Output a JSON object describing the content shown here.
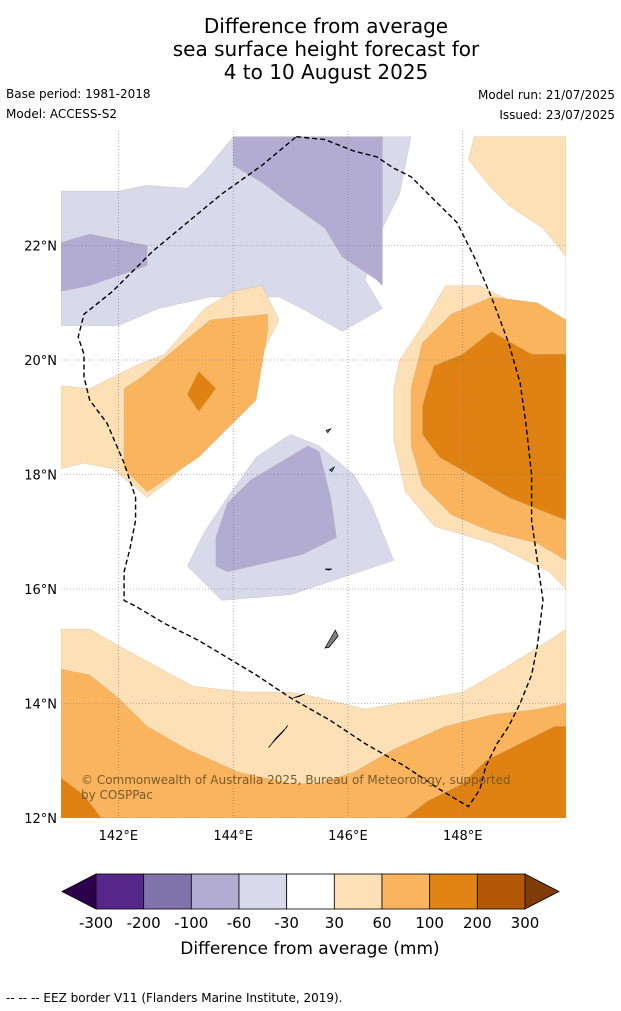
{
  "title": {
    "line1": "Difference from average",
    "line2": "sea surface height forecast for",
    "line3": "4 to 10 August 2025"
  },
  "meta": {
    "base_period": "Base period: 1981-2018",
    "model": "Model: ACCESS-S2",
    "model_run": "Model run: 21/07/2025",
    "issued": "Issued: 23/07/2025"
  },
  "map": {
    "lon_range": [
      141,
      149.8
    ],
    "lat_range": [
      12,
      24
    ],
    "lon_ticks": [
      {
        "value": 142,
        "label": "142°E"
      },
      {
        "value": 144,
        "label": "144°E"
      },
      {
        "value": 146,
        "label": "146°E"
      },
      {
        "value": 148,
        "label": "148°E"
      }
    ],
    "lat_ticks": [
      {
        "value": 12,
        "label": "12°N"
      },
      {
        "value": 14,
        "label": "14°N"
      },
      {
        "value": 16,
        "label": "16°N"
      },
      {
        "value": 18,
        "label": "18°N"
      },
      {
        "value": 20,
        "label": "20°N"
      },
      {
        "value": 22,
        "label": "22°N"
      }
    ],
    "grid": true,
    "copyright": "© Commonwealth of Australia 2025, Bureau of Meteorology, supported by COSPPac",
    "contour_levels": [
      {
        "level": "-60 to -30",
        "color": "#d8d9ea",
        "polygons": [
          [
            [
              141,
              22.95
            ],
            [
              142,
              22.95
            ],
            [
              142.5,
              23.05
            ],
            [
              143.2,
              23
            ],
            [
              143.5,
              23.3
            ],
            [
              144,
              23.9
            ],
            [
              147.1,
              23.9
            ],
            [
              146.9,
              22.9
            ],
            [
              146.5,
              22.1
            ],
            [
              146.3,
              21.4
            ],
            [
              146.6,
              20.9
            ],
            [
              145.9,
              20.5
            ],
            [
              145.2,
              20.9
            ],
            [
              144.8,
              21.1
            ],
            [
              143.6,
              21.1
            ],
            [
              142.7,
              20.9
            ],
            [
              142,
              20.6
            ],
            [
              141,
              20.6
            ]
          ],
          [
            [
              143.2,
              16.4
            ],
            [
              143.8,
              15.8
            ],
            [
              145,
              15.9
            ],
            [
              146.2,
              16.3
            ],
            [
              146.8,
              16.5
            ],
            [
              146.4,
              17.5
            ],
            [
              146.1,
              18
            ],
            [
              145.5,
              18.5
            ],
            [
              145,
              18.7
            ],
            [
              144.4,
              18.3
            ],
            [
              143.9,
              17.6
            ],
            [
              143.5,
              17
            ]
          ]
        ]
      },
      {
        "level": "-100 to -60",
        "color": "#b2acd3",
        "polygons": [
          [
            [
              144,
              23.9
            ],
            [
              146.6,
              23.9
            ],
            [
              146.6,
              21.3
            ],
            [
              146.5,
              21.4
            ],
            [
              145.9,
              21.8
            ],
            [
              145.6,
              22.3
            ],
            [
              144.9,
              22.8
            ],
            [
              144.5,
              23.1
            ],
            [
              144,
              23.4
            ]
          ],
          [
            [
              141,
              22.05
            ],
            [
              141.5,
              22.2
            ],
            [
              142.5,
              22
            ],
            [
              142.5,
              21.65
            ],
            [
              141.5,
              21.3
            ],
            [
              141,
              21.2
            ]
          ],
          [
            [
              143.7,
              16.4
            ],
            [
              143.9,
              16.3
            ],
            [
              145.2,
              16.6
            ],
            [
              145.8,
              16.9
            ],
            [
              145.7,
              17.6
            ],
            [
              145.5,
              18.4
            ],
            [
              145.3,
              18.5
            ],
            [
              144.8,
              18.2
            ],
            [
              144.3,
              17.9
            ],
            [
              143.9,
              17.5
            ],
            [
              143.7,
              16.9
            ]
          ]
        ]
      },
      {
        "level": "30 to 60",
        "color": "#fde0b6",
        "polygons": [
          [
            [
              141,
              19.55
            ],
            [
              141.5,
              19.5
            ],
            [
              142.3,
              19.9
            ],
            [
              142.8,
              20.1
            ],
            [
              143.5,
              20.9
            ],
            [
              144,
              21.2
            ],
            [
              144.5,
              21.3
            ],
            [
              144.8,
              20.7
            ],
            [
              144.4,
              19.9
            ],
            [
              144,
              19.2
            ],
            [
              143.5,
              18.5
            ],
            [
              142.9,
              17.9
            ],
            [
              142.5,
              17.6
            ],
            [
              141.9,
              18.1
            ],
            [
              141.4,
              18.2
            ],
            [
              141,
              18.1
            ]
          ],
          [
            [
              148.2,
              23.9
            ],
            [
              149.8,
              23.9
            ],
            [
              149.8,
              20.6
            ],
            [
              149.5,
              20.7
            ],
            [
              148.3,
              21.3
            ],
            [
              147.7,
              21.3
            ],
            [
              147.3,
              20.6
            ],
            [
              146.9,
              20
            ],
            [
              146.8,
              19.5
            ],
            [
              146.8,
              18.6
            ],
            [
              147,
              17.7
            ],
            [
              147.5,
              17.1
            ],
            [
              148.5,
              16.8
            ],
            [
              149.5,
              16.3
            ],
            [
              149.8,
              16
            ],
            [
              149.8,
              15.3
            ],
            [
              149.5,
              15.1
            ],
            [
              148.7,
              14.6
            ],
            [
              148,
              14.2
            ],
            [
              146.3,
              13.9
            ],
            [
              145.5,
              14.1
            ],
            [
              145,
              14.2
            ],
            [
              144.2,
              14.2
            ],
            [
              143.3,
              14.3
            ],
            [
              142.2,
              14.9
            ],
            [
              141.5,
              15.3
            ],
            [
              141,
              15.3
            ],
            [
              141,
              12
            ],
            [
              149.8,
              12
            ],
            [
              149.8,
              21.8
            ],
            [
              149.4,
              22.3
            ],
            [
              148.8,
              22.7
            ],
            [
              148.5,
              23
            ],
            [
              148.1,
              23.5
            ]
          ]
        ]
      },
      {
        "level": "60 to 100",
        "color": "#f9b45d",
        "polygons": [
          [
            [
              142.1,
              19.5
            ],
            [
              142.4,
              19.7
            ],
            [
              143,
              20.2
            ],
            [
              143.6,
              20.7
            ],
            [
              144.6,
              20.8
            ],
            [
              144.6,
              20.5
            ],
            [
              144.4,
              19.3
            ],
            [
              144,
              18.9
            ],
            [
              143.4,
              18.3
            ],
            [
              142.5,
              17.7
            ],
            [
              142.1,
              18.1
            ]
          ],
          [
            [
              149.8,
              20.7
            ],
            [
              149.3,
              21
            ],
            [
              148.5,
              21.1
            ],
            [
              147.8,
              20.8
            ],
            [
              147.3,
              20.3
            ],
            [
              147.1,
              19.5
            ],
            [
              147.1,
              18.5
            ],
            [
              147.3,
              17.8
            ],
            [
              147.8,
              17.3
            ],
            [
              148.5,
              17
            ],
            [
              149.3,
              16.8
            ],
            [
              149.8,
              16.5
            ]
          ],
          [
            [
              141,
              14.6
            ],
            [
              141.5,
              14.5
            ],
            [
              142,
              14.1
            ],
            [
              142.5,
              13.6
            ],
            [
              143.2,
              13.2
            ],
            [
              144.1,
              12.8
            ],
            [
              145,
              12.6
            ],
            [
              145.5,
              12.6
            ],
            [
              146.1,
              12.8
            ],
            [
              146.8,
              13.2
            ],
            [
              147.7,
              13.6
            ],
            [
              148.5,
              13.8
            ],
            [
              149.3,
              13.9
            ],
            [
              149.8,
              14
            ],
            [
              149.8,
              12
            ],
            [
              141,
              12
            ]
          ]
        ]
      },
      {
        "level": "100 to 200",
        "color": "#e08213",
        "polygons": [
          [
            [
              143.4,
              19.8
            ],
            [
              143.7,
              19.5
            ],
            [
              143.4,
              19.1
            ],
            [
              143.2,
              19.4
            ]
          ],
          [
            [
              149.8,
              20.1
            ],
            [
              149.2,
              20.1
            ],
            [
              148.5,
              20.5
            ],
            [
              148,
              20.1
            ],
            [
              147.5,
              19.9
            ],
            [
              147.3,
              19.2
            ],
            [
              147.3,
              18.7
            ],
            [
              147.6,
              18.3
            ],
            [
              148.3,
              17.9
            ],
            [
              148.8,
              17.6
            ],
            [
              149.3,
              17.4
            ],
            [
              149.8,
              17.2
            ]
          ],
          [
            [
              147,
              12
            ],
            [
              147.4,
              12.3
            ],
            [
              148,
              12.6
            ],
            [
              148.4,
              13
            ],
            [
              149,
              13.3
            ],
            [
              149.6,
              13.6
            ],
            [
              149.8,
              13.6
            ],
            [
              149.8,
              12
            ]
          ],
          [
            [
              141,
              12
            ],
            [
              141,
              12.7
            ],
            [
              141.4,
              12.4
            ],
            [
              141.7,
              12
            ]
          ]
        ]
      }
    ],
    "eez_border": [
      [
        145.1,
        23.9
      ],
      [
        145.6,
        23.85
      ],
      [
        146.1,
        23.65
      ],
      [
        146.5,
        23.55
      ],
      [
        146.8,
        23.35
      ],
      [
        147.1,
        23.2
      ],
      [
        147.5,
        22.8
      ],
      [
        147.9,
        22.4
      ],
      [
        148.2,
        21.8
      ],
      [
        148.5,
        21.1
      ],
      [
        148.8,
        20.3
      ],
      [
        149.0,
        19.6
      ],
      [
        149.1,
        18.9
      ],
      [
        149.2,
        18
      ],
      [
        149.2,
        17.2
      ],
      [
        149.3,
        16.5
      ],
      [
        149.4,
        15.8
      ],
      [
        149.3,
        15
      ],
      [
        149.2,
        14.5
      ],
      [
        149.0,
        14
      ],
      [
        148.8,
        13.6
      ],
      [
        148.6,
        13.3
      ],
      [
        148.4,
        12.9
      ],
      [
        148.3,
        12.5
      ],
      [
        148.1,
        12.2
      ],
      [
        147.6,
        12.5
      ],
      [
        147,
        12.9
      ],
      [
        146.3,
        13.3
      ],
      [
        145.7,
        13.7
      ],
      [
        145.0,
        14.1
      ],
      [
        144.4,
        14.5
      ],
      [
        143.9,
        14.8
      ],
      [
        143.4,
        15.1
      ],
      [
        142.8,
        15.4
      ],
      [
        142.3,
        15.7
      ],
      [
        142.1,
        15.8
      ],
      [
        142.1,
        16.3
      ],
      [
        142.2,
        16.7
      ],
      [
        142.3,
        17.2
      ],
      [
        142.3,
        17.6
      ],
      [
        142.1,
        18.2
      ],
      [
        141.8,
        18.9
      ],
      [
        141.5,
        19.3
      ],
      [
        141.4,
        19.7
      ],
      [
        141.4,
        20.1
      ],
      [
        141.3,
        20.4
      ],
      [
        141.4,
        20.8
      ],
      [
        141.9,
        21.2
      ],
      [
        142.6,
        21.9
      ],
      [
        143.2,
        22.4
      ],
      [
        143.8,
        22.9
      ],
      [
        144.5,
        23.4
      ],
      [
        145.1,
        23.9
      ]
    ],
    "islands": [
      {
        "name": "",
        "points": [
          [
            144.62,
            13.23
          ],
          [
            144.75,
            13.4
          ],
          [
            144.93,
            13.58
          ],
          [
            144.95,
            13.62
          ],
          [
            144.88,
            13.52
          ],
          [
            144.72,
            13.35
          ],
          [
            144.63,
            13.25
          ]
        ]
      },
      {
        "name": "",
        "points": [
          [
            145.05,
            14.1
          ],
          [
            145.25,
            14.17
          ],
          [
            145.15,
            14.12
          ]
        ]
      },
      {
        "name": "",
        "points": [
          [
            145.6,
            14.97
          ],
          [
            145.78,
            15.28
          ],
          [
            145.83,
            15.18
          ],
          [
            145.67,
            14.98
          ]
        ]
      },
      {
        "name": "",
        "points": [
          [
            145.6,
            16.35
          ],
          [
            145.72,
            16.35
          ],
          [
            145.66,
            16.33
          ]
        ]
      },
      {
        "name": "",
        "points": [
          [
            145.68,
            18.08
          ],
          [
            145.76,
            18.13
          ],
          [
            145.72,
            18.05
          ]
        ]
      },
      {
        "name": "",
        "points": [
          [
            145.62,
            18.77
          ],
          [
            145.7,
            18.8
          ],
          [
            145.65,
            18.73
          ]
        ]
      }
    ]
  },
  "colorbar": {
    "labels": [
      "-300",
      "-200",
      "-100",
      "-60",
      "-30",
      "30",
      "60",
      "100",
      "200",
      "300"
    ],
    "segments": [
      {
        "color": "#542788"
      },
      {
        "color": "#8073ac"
      },
      {
        "color": "#b2abd2"
      },
      {
        "color": "#d8daeb"
      },
      {
        "color": "#ffffff"
      },
      {
        "color": "#fee0b6"
      },
      {
        "color": "#f9b45d"
      },
      {
        "color": "#e08214"
      },
      {
        "color": "#b35806"
      }
    ],
    "low_extend_color": "#2d004b",
    "high_extend_color": "#7f3b08",
    "label": "Difference from average (mm)"
  },
  "footer": "--  --  -- EEZ border V11 (Flanders Marine Institute, 2019)."
}
